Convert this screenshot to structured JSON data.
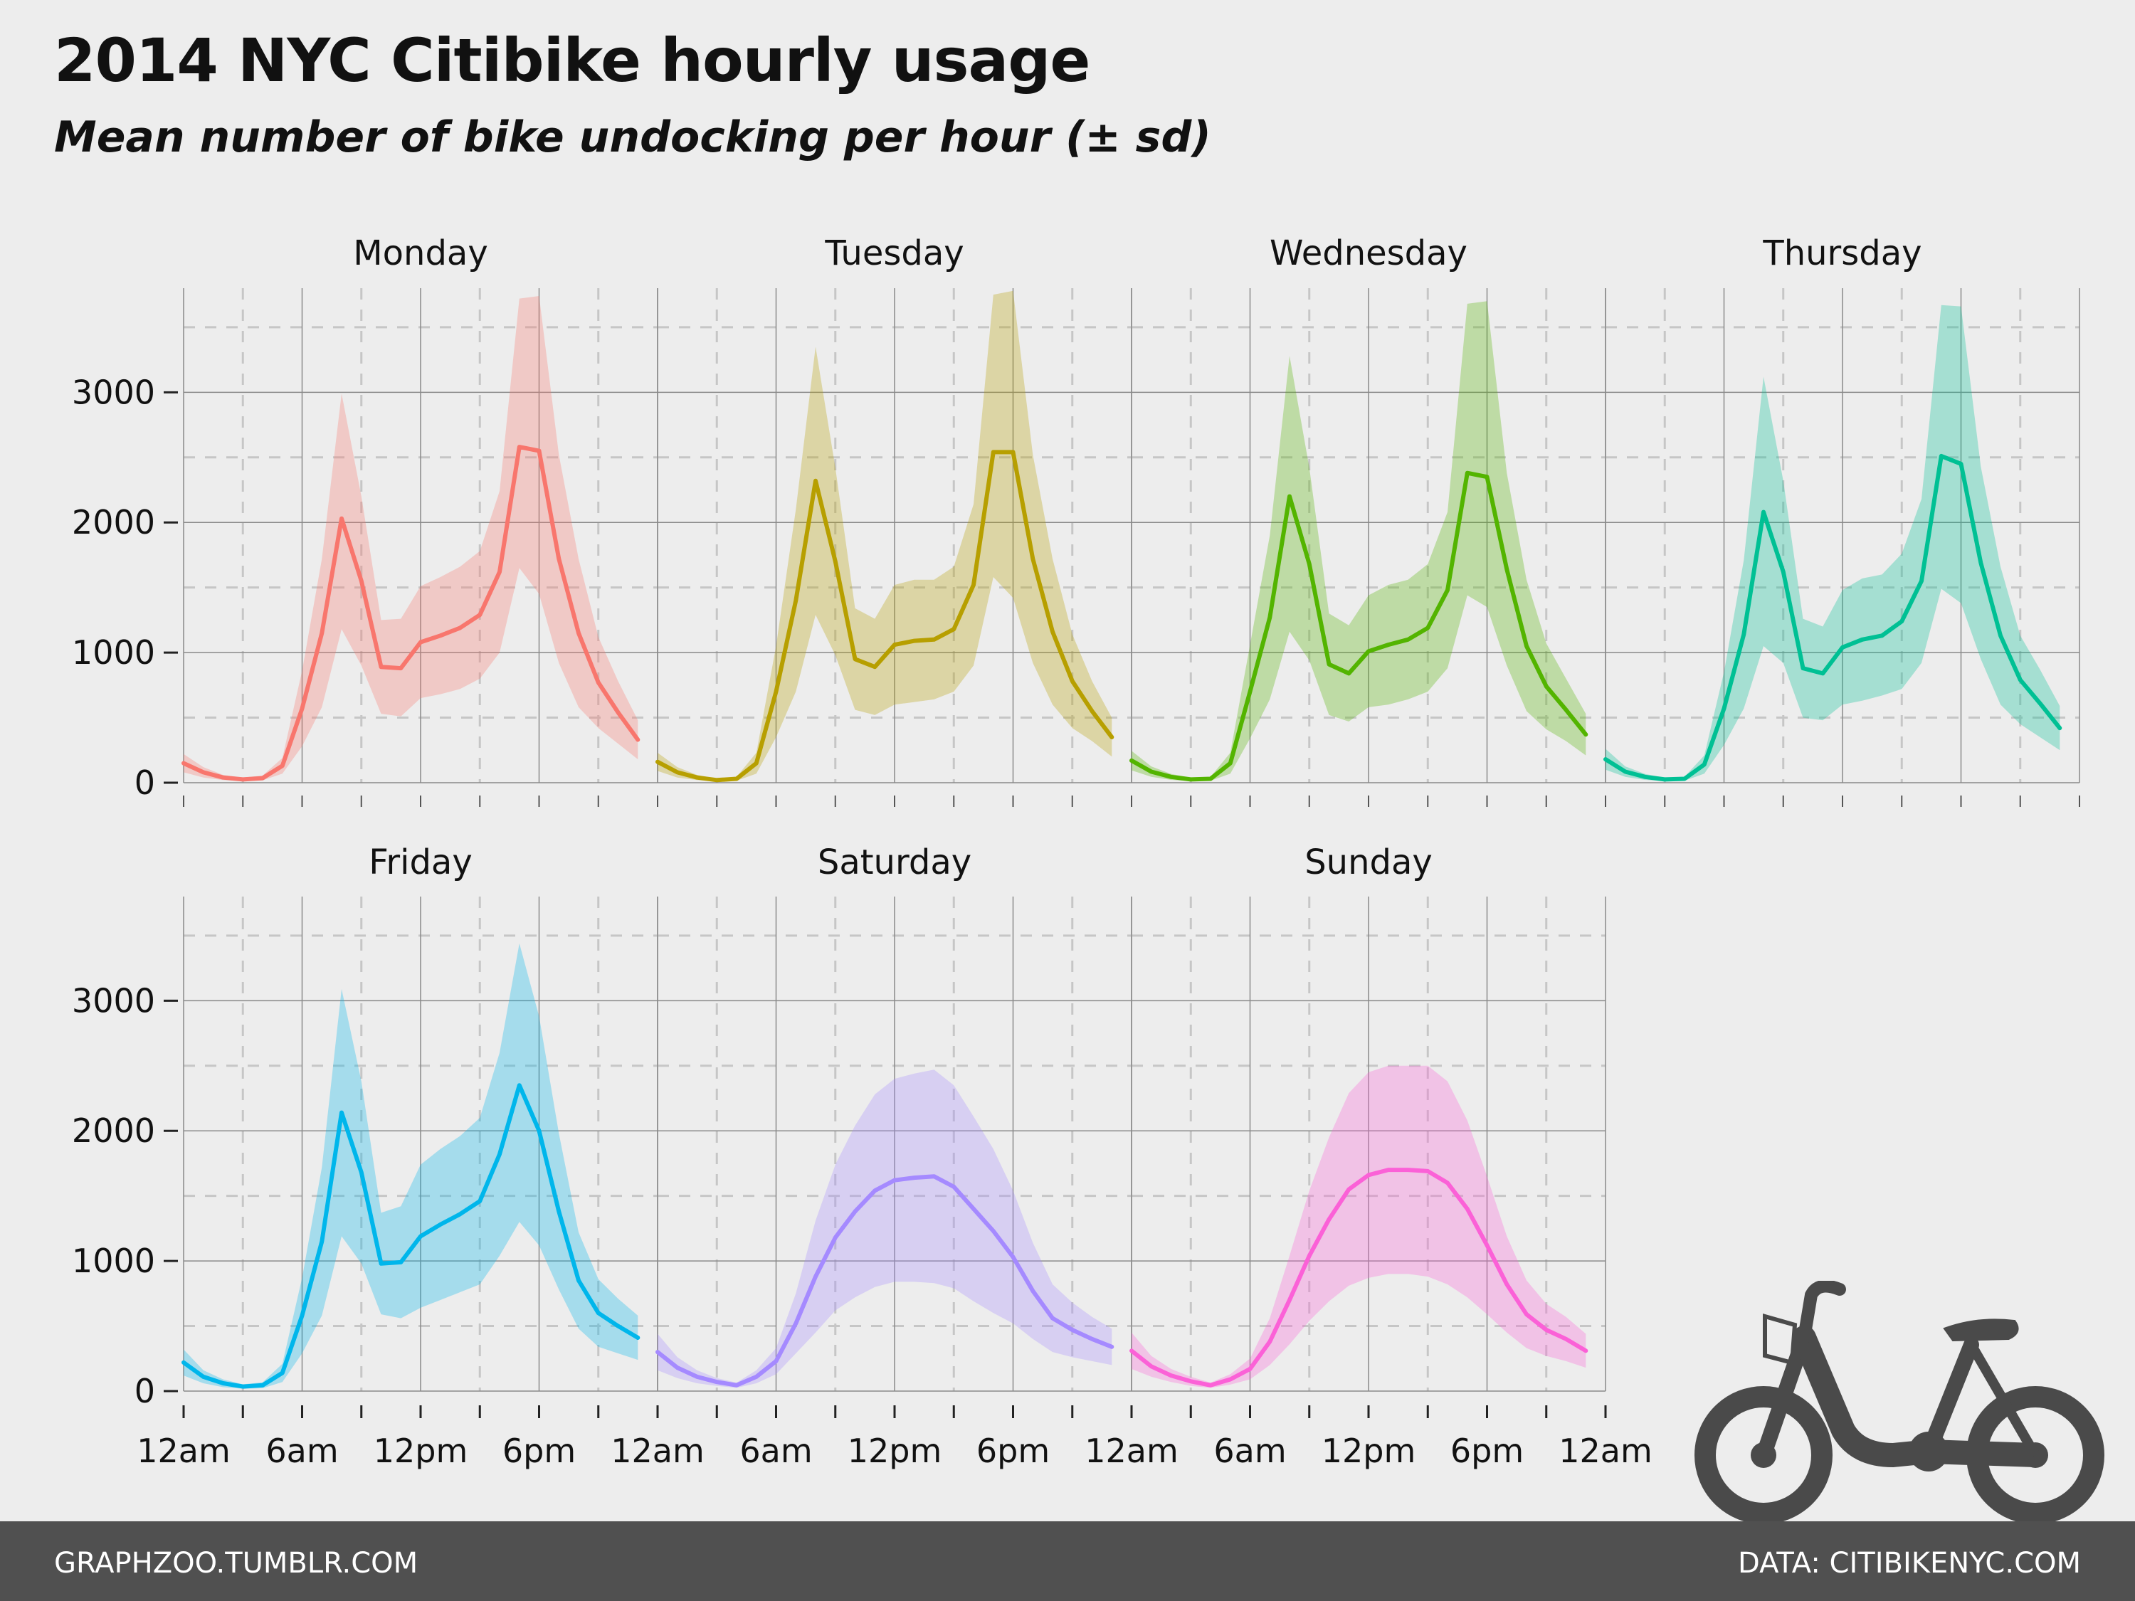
{
  "title": "2014 NYC Citibike hourly usage",
  "subtitle": "Mean number of bike undocking per hour (± sd)",
  "footer": {
    "left": "GRAPHZOO.TUMBLR.COM",
    "right": "DATA: CITIBIKENYC.COM"
  },
  "chart_data": {
    "type": "line",
    "x": [
      0,
      1,
      2,
      3,
      4,
      5,
      6,
      7,
      8,
      9,
      10,
      11,
      12,
      13,
      14,
      15,
      16,
      17,
      18,
      19,
      20,
      21,
      22,
      23
    ],
    "xticks": [
      0,
      6,
      12,
      18,
      24
    ],
    "xticklabels": [
      "12am",
      "6am",
      "12pm",
      "6pm",
      "12am"
    ],
    "xlim": [
      0,
      24
    ],
    "ylim": [
      0,
      3800
    ],
    "yticks": [
      0,
      1000,
      2000,
      3000
    ],
    "yticklabels": [
      "0",
      "1000",
      "2000",
      "3000"
    ],
    "grid": true,
    "series": [
      {
        "name": "Monday",
        "color": "#F8766D",
        "values": [
          150,
          80,
          40,
          25,
          35,
          130,
          570,
          1150,
          2030,
          1550,
          890,
          880,
          1080,
          1130,
          1190,
          1290,
          1620,
          2580,
          2550,
          1720,
          1150,
          770,
          540,
          330
        ],
        "lower": [
          80,
          40,
          20,
          12,
          18,
          70,
          280,
          580,
          1180,
          900,
          530,
          510,
          650,
          680,
          720,
          800,
          1000,
          1650,
          1450,
          920,
          580,
          420,
          300,
          180
        ],
        "upper": [
          220,
          120,
          60,
          40,
          55,
          190,
          860,
          1720,
          2990,
          2200,
          1250,
          1260,
          1510,
          1580,
          1660,
          1780,
          2240,
          3720,
          3740,
          2520,
          1720,
          1120,
          780,
          480
        ]
      },
      {
        "name": "Tuesday",
        "color": "#B79F00",
        "values": [
          160,
          80,
          40,
          20,
          30,
          150,
          700,
          1400,
          2320,
          1700,
          950,
          890,
          1060,
          1090,
          1100,
          1180,
          1520,
          2540,
          2540,
          1720,
          1160,
          780,
          550,
          350
        ],
        "lower": [
          90,
          40,
          20,
          10,
          15,
          70,
          350,
          700,
          1290,
          980,
          560,
          520,
          600,
          620,
          640,
          700,
          900,
          1580,
          1420,
          920,
          600,
          420,
          320,
          200
        ],
        "upper": [
          230,
          120,
          60,
          30,
          45,
          230,
          1050,
          2100,
          3350,
          2420,
          1340,
          1260,
          1520,
          1560,
          1560,
          1660,
          2140,
          3750,
          3780,
          2520,
          1720,
          1140,
          780,
          500
        ]
      },
      {
        "name": "Wednesday",
        "color": "#53B400",
        "values": [
          170,
          85,
          45,
          25,
          30,
          150,
          700,
          1270,
          2200,
          1680,
          910,
          840,
          1010,
          1060,
          1100,
          1190,
          1480,
          2380,
          2350,
          1640,
          1050,
          740,
          560,
          370
        ],
        "lower": [
          95,
          45,
          22,
          12,
          15,
          70,
          340,
          640,
          1160,
          940,
          520,
          470,
          580,
          600,
          640,
          700,
          880,
          1440,
          1350,
          900,
          550,
          410,
          320,
          210
        ],
        "upper": [
          245,
          125,
          68,
          38,
          45,
          230,
          1060,
          1900,
          3280,
          2420,
          1300,
          1210,
          1440,
          1520,
          1560,
          1680,
          2080,
          3680,
          3700,
          2380,
          1560,
          1070,
          800,
          530
        ]
      },
      {
        "name": "Thursday",
        "color": "#00C094",
        "values": [
          180,
          85,
          45,
          25,
          30,
          140,
          570,
          1140,
          2080,
          1620,
          880,
          840,
          1040,
          1100,
          1130,
          1240,
          1550,
          2510,
          2450,
          1690,
          1130,
          790,
          610,
          420
        ],
        "lower": [
          100,
          45,
          22,
          12,
          15,
          70,
          290,
          570,
          1050,
          920,
          500,
          480,
          600,
          630,
          670,
          720,
          920,
          1490,
          1380,
          950,
          600,
          450,
          350,
          250
        ],
        "upper": [
          260,
          125,
          68,
          38,
          45,
          210,
          850,
          1710,
          3120,
          2320,
          1260,
          1200,
          1480,
          1570,
          1600,
          1760,
          2180,
          3670,
          3660,
          2430,
          1660,
          1130,
          870,
          590
        ]
      },
      {
        "name": "Friday",
        "color": "#00B6EB",
        "values": [
          220,
          110,
          60,
          35,
          45,
          140,
          580,
          1150,
          2140,
          1680,
          980,
          990,
          1190,
          1280,
          1360,
          1460,
          1820,
          2350,
          2000,
          1380,
          850,
          600,
          500,
          410
        ],
        "lower": [
          120,
          60,
          30,
          18,
          22,
          70,
          290,
          580,
          1190,
          980,
          590,
          560,
          640,
          700,
          760,
          820,
          1040,
          1300,
          1120,
          780,
          480,
          340,
          290,
          240
        ],
        "upper": [
          320,
          160,
          90,
          52,
          68,
          210,
          870,
          1720,
          3090,
          2380,
          1370,
          1420,
          1740,
          1860,
          1960,
          2100,
          2600,
          3440,
          2880,
          1980,
          1220,
          860,
          710,
          580
        ]
      },
      {
        "name": "Saturday",
        "color": "#A58AFF",
        "values": [
          300,
          180,
          110,
          70,
          45,
          110,
          230,
          520,
          880,
          1180,
          1380,
          1540,
          1620,
          1640,
          1650,
          1570,
          1400,
          1230,
          1030,
          770,
          560,
          470,
          400,
          340
        ],
        "lower": [
          160,
          100,
          60,
          40,
          25,
          60,
          130,
          290,
          450,
          620,
          720,
          800,
          840,
          840,
          830,
          790,
          690,
          600,
          520,
          400,
          300,
          260,
          230,
          200
        ],
        "upper": [
          440,
          260,
          160,
          100,
          65,
          160,
          330,
          750,
          1310,
          1740,
          2040,
          2280,
          2400,
          2440,
          2470,
          2350,
          2110,
          1860,
          1540,
          1140,
          820,
          680,
          570,
          480
        ]
      },
      {
        "name": "Sunday",
        "color": "#FB61D7",
        "values": [
          310,
          190,
          120,
          75,
          45,
          90,
          170,
          380,
          700,
          1040,
          1320,
          1550,
          1660,
          1700,
          1700,
          1690,
          1600,
          1400,
          1120,
          820,
          590,
          470,
          400,
          310
        ],
        "lower": [
          170,
          110,
          70,
          40,
          25,
          50,
          90,
          200,
          360,
          540,
          690,
          810,
          870,
          900,
          900,
          880,
          820,
          720,
          590,
          450,
          330,
          270,
          230,
          180
        ],
        "upper": [
          450,
          270,
          170,
          110,
          65,
          130,
          250,
          560,
          1040,
          1540,
          1950,
          2290,
          2450,
          2500,
          2500,
          2500,
          2380,
          2080,
          1650,
          1190,
          850,
          670,
          570,
          440
        ]
      }
    ]
  }
}
